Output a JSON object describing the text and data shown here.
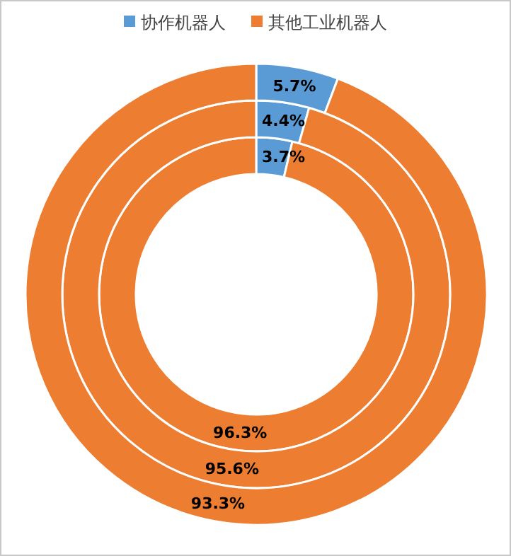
{
  "chart_data": {
    "type": "donut",
    "categories": [
      "协作机器人",
      "其他工业机器人"
    ],
    "colors": [
      "#5b9bd5",
      "#ed7d31"
    ],
    "series": [
      {
        "values": [
          3.7,
          96.3
        ],
        "value_labels": [
          "3.7%",
          "96.3%"
        ]
      },
      {
        "values": [
          4.4,
          95.6
        ],
        "value_labels": [
          "4.4%",
          "95.6%"
        ]
      },
      {
        "values": [
          5.7,
          93.3
        ],
        "value_labels": [
          "5.7%",
          "93.3%"
        ]
      }
    ],
    "legend": "top"
  }
}
